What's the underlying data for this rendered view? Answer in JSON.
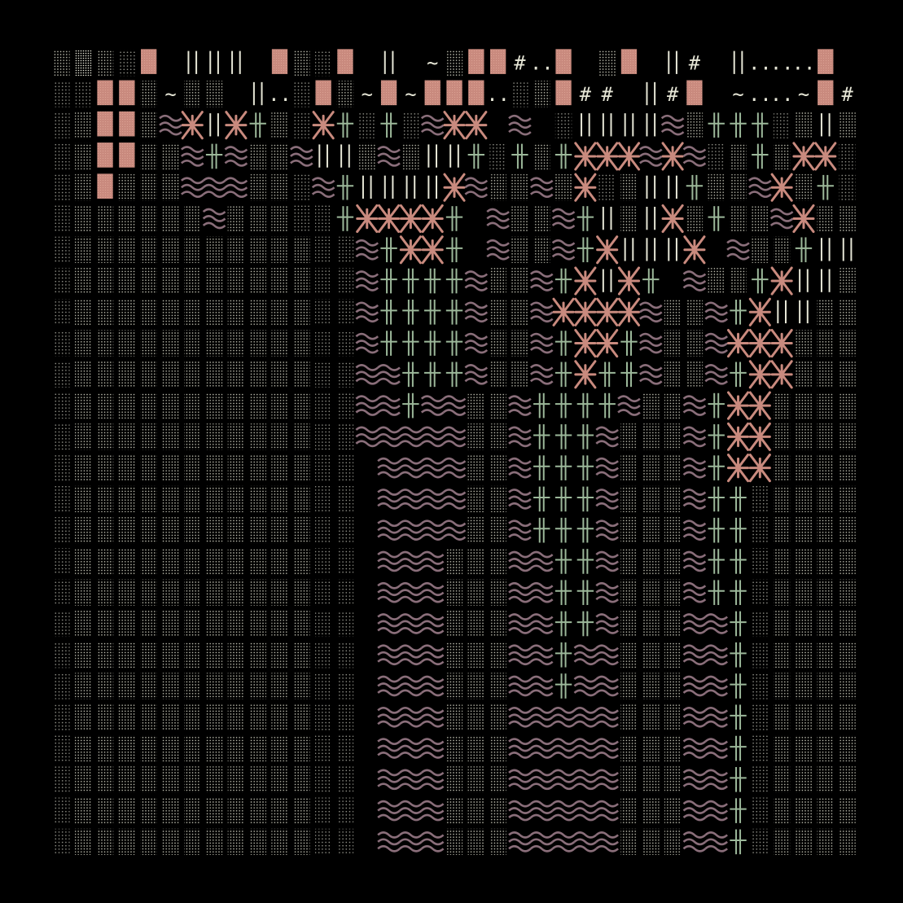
{
  "palette": {
    "background": "#000000",
    "dots": "#cfcfbf",
    "dots_dim": "#8f8f86",
    "dots_bright": "#e6e6d6",
    "wave": "#8a6e7a",
    "plus": "#9cb89a",
    "star": "#c98a7e",
    "block": "#c98a7e",
    "bars": "#e6e6d6",
    "text": "#e6e6d6"
  },
  "symbols": {
    "0": "dots-fine",
    "1": "dots-medium",
    "2": "dots-dense",
    "W": "wave-icon",
    "P": "double-cross-icon",
    "S": "asterisk-star-icon",
    "B": "solid-block-icon",
    "I": "vertical-bars-icon",
    "T": "tilde-face-glyph",
    "H": "hash-glyph",
    "D": "double-dot-glyph",
    "E": "empty-cell"
  },
  "grid": {
    "cols": 37,
    "rows": 26,
    "cells": [
      "1210B III B10B I T1BBHDBE1B IH IDDDB TB10 IHDDT",
      "00BB1T11 ID0B1TBTBBBD01BHH IHB TDDTBHTI0II",
      "01BB1WSISP10SP0P0WSS WE0IIIIW1PPP01I10S0",
      "01BB11WPW11WII1W1IIP0P1PSSSWSW01P1SS01",
      "01B111WWW110WPIIIISW11W1S01IIP11WS1P0",
      "0111111W11100PSSSSP W11WPI1IS1P11WS110",
      "01111111111100WPSSP W11WPSIIIS W11PII0",
      "01111111111100WPPPPW11WPSISP W11PSII",
      "01111111111100WPPPPW11WSSSSW11WPSII",
      "01111111111100WPPPPW11WPSSPW11WSSS",
      "01111111111100WWPPPW11WPSPPW11WPSS",
      "01111111111100WWPWW11WPPPPW11WPSS",
      "01111111111100WWWWW11WPPPW111WPSS",
      "01111111111100EWWWW11WPPPW111WPSS",
      "01111111111100EWWWW11WPPPW111WPP0",
      "01111111111100EWWWW11WPPPW111WPP0",
      "01111111111100EWWW111WWPPW111WPP0",
      "01111111111100EWWW111WWPPW111WPP0",
      "01111111111100EWWW111WWPPW111WWP0",
      "01111111111100EWWW111WWPWW111WWP0",
      "01111111111100EWWW111WWPWW111WWP0",
      "01111111111100EWWW111WWWWW111WWP0",
      "01111111111100EWWW111WWWWW111WWP0",
      "01111111111100EWWW111WWWWW111WWP0",
      "01111111111100EWWW111WWWWW111WWP0",
      "01111111111100EWWW111WWWWW111WWP0"
    ]
  }
}
